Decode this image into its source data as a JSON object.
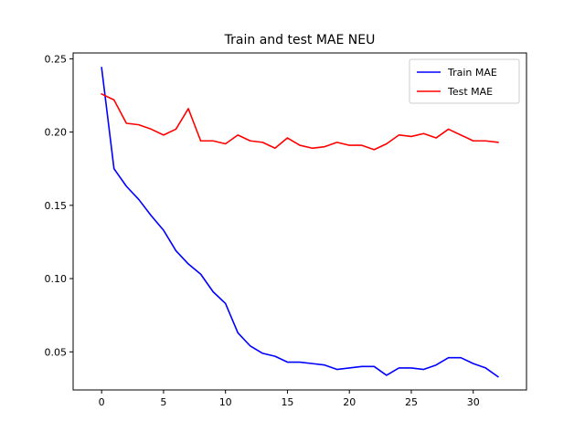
{
  "chart_data": {
    "type": "line",
    "title": "Train and test MAE NEU",
    "xlabel": "",
    "ylabel": "",
    "xlim": [
      -2.3,
      34.3
    ],
    "ylim": [
      0.024,
      0.254
    ],
    "xticks": [
      0,
      5,
      10,
      15,
      20,
      25,
      30
    ],
    "yticks": [
      0.05,
      0.1,
      0.15,
      0.2,
      0.25
    ],
    "xtick_labels": [
      "0",
      "5",
      "10",
      "15",
      "20",
      "25",
      "30"
    ],
    "ytick_labels": [
      "0.05",
      "0.10",
      "0.15",
      "0.20",
      "0.25"
    ],
    "grid": false,
    "legend_position": "top-right",
    "x": [
      0,
      1,
      2,
      3,
      4,
      5,
      6,
      7,
      8,
      9,
      10,
      11,
      12,
      13,
      14,
      15,
      16,
      17,
      18,
      19,
      20,
      21,
      22,
      23,
      24,
      25,
      26,
      27,
      28,
      29,
      30,
      31,
      32
    ],
    "series": [
      {
        "name": "Train MAE",
        "color": "#0000ff",
        "values": [
          0.244,
          0.175,
          0.163,
          0.154,
          0.143,
          0.133,
          0.119,
          0.11,
          0.103,
          0.091,
          0.083,
          0.063,
          0.054,
          0.049,
          0.047,
          0.043,
          0.043,
          0.042,
          0.041,
          0.038,
          0.039,
          0.04,
          0.04,
          0.034,
          0.039,
          0.039,
          0.038,
          0.041,
          0.046,
          0.046,
          0.042,
          0.039,
          0.033
        ]
      },
      {
        "name": "Test MAE",
        "color": "#ff0000",
        "values": [
          0.226,
          0.222,
          0.206,
          0.205,
          0.202,
          0.198,
          0.202,
          0.216,
          0.194,
          0.194,
          0.192,
          0.198,
          0.194,
          0.193,
          0.189,
          0.196,
          0.191,
          0.189,
          0.19,
          0.193,
          0.191,
          0.191,
          0.188,
          0.192,
          0.198,
          0.197,
          0.199,
          0.196,
          0.202,
          0.198,
          0.194,
          0.194,
          0.193
        ]
      }
    ]
  }
}
